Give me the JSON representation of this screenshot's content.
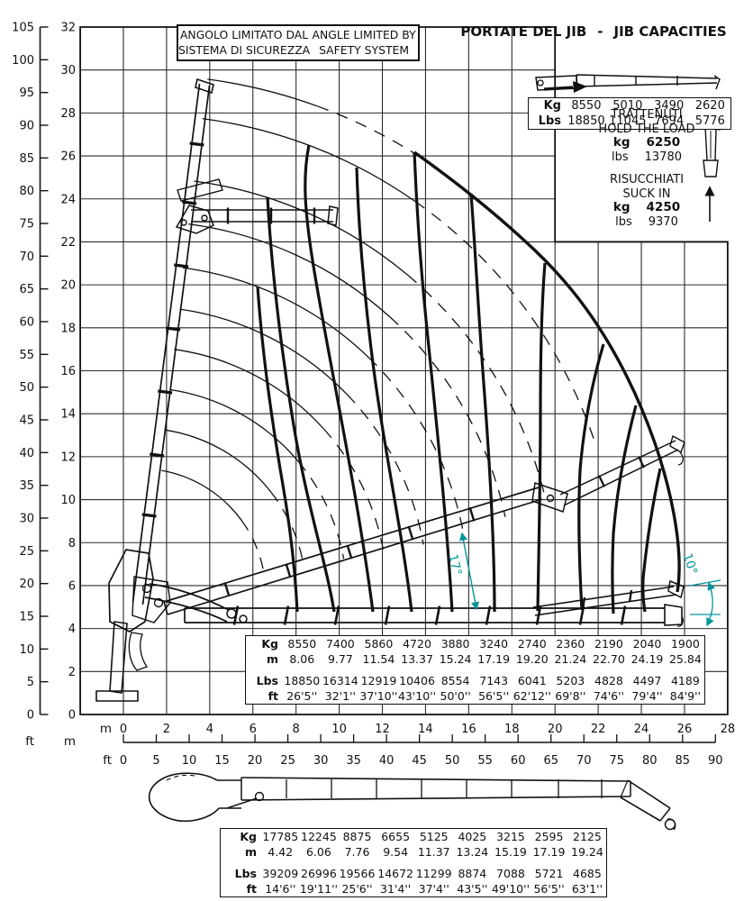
{
  "page": {
    "background": "#ffffff",
    "ink": "#111111",
    "accent_color": "#009699"
  },
  "title": {
    "it": "PORTATE DEL JIB",
    "separator": "-",
    "en": "JIB CAPACITIES"
  },
  "safety_note": {
    "it_line1": "ANGOLO LIMITATO DAL",
    "it_line2": "SISTEMA DI SICUREZZA",
    "en_line1": "ANGLE LIMITED BY",
    "en_line2": "SAFETY SYSTEM"
  },
  "jib_table": {
    "rows": [
      {
        "label": "Kg",
        "values": [
          "8550",
          "5010",
          "3490",
          "2620"
        ]
      },
      {
        "label": "Lbs",
        "values": [
          "18850",
          "11045",
          "7694",
          "5776"
        ]
      }
    ]
  },
  "hold_load": {
    "title_it": "TRATTENUTI",
    "title_en": "HOLD THE LOAD",
    "rows": [
      {
        "label": "kg",
        "value": "6250",
        "bold": true
      },
      {
        "label": "lbs",
        "value": "13780",
        "bold": false
      }
    ]
  },
  "suck_in": {
    "title_it": "RISUCCHIATI",
    "title_en": "SUCK IN",
    "rows": [
      {
        "label": "kg",
        "value": "4250",
        "bold": true
      },
      {
        "label": "lbs",
        "value": "9370",
        "bold": false
      }
    ]
  },
  "main_table": {
    "rows": [
      {
        "label": "Kg",
        "values": [
          "8550",
          "7400",
          "5860",
          "4720",
          "3880",
          "3240",
          "2740",
          "2360",
          "2190",
          "2040",
          "1900"
        ]
      },
      {
        "label": "m",
        "values": [
          "8.06",
          "9.77",
          "11.54",
          "13.37",
          "15.24",
          "17.19",
          "19.20",
          "21.24",
          "22.70",
          "24.19",
          "25.84"
        ]
      },
      {
        "label": "Lbs",
        "values": [
          "18850",
          "16314",
          "12919",
          "10406",
          "8554",
          "7143",
          "6041",
          "5203",
          "4828",
          "4497",
          "4189"
        ]
      },
      {
        "label": "ft",
        "values": [
          "26'5''",
          "32'1''",
          "37'10''",
          "43'10''",
          "50'0''",
          "56'5''",
          "62'12''",
          "69'8''",
          "74'6''",
          "79'4''",
          "84'9''"
        ]
      }
    ]
  },
  "boom_table": {
    "rows": [
      {
        "label": "Kg",
        "values": [
          "17785",
          "12245",
          "8875",
          "6655",
          "5125",
          "4025",
          "3215",
          "2595",
          "2125"
        ]
      },
      {
        "label": "m",
        "values": [
          "4.42",
          "6.06",
          "7.76",
          "9.54",
          "11.37",
          "13.24",
          "15.19",
          "17.19",
          "19.24"
        ]
      },
      {
        "label": "Lbs",
        "values": [
          "39209",
          "26996",
          "19566",
          "14672",
          "11299",
          "8874",
          "7088",
          "5721",
          "4685"
        ]
      },
      {
        "label": "ft",
        "values": [
          "14'6''",
          "19'11''",
          "25'6''",
          "31'4''",
          "37'4''",
          "43'5''",
          "49'10''",
          "56'5''",
          "63'1''"
        ]
      }
    ]
  },
  "axes": {
    "left_ft": {
      "unit": "ft",
      "ticks": [
        105,
        100,
        95,
        90,
        85,
        80,
        75,
        70,
        65,
        60,
        55,
        50,
        45,
        40,
        35,
        30,
        25,
        20,
        15,
        10,
        5,
        0
      ]
    },
    "left_m": {
      "unit": "m",
      "ticks": [
        32,
        30,
        28,
        26,
        24,
        22,
        20,
        18,
        16,
        14,
        12,
        10,
        8,
        6,
        4,
        2,
        0
      ]
    },
    "bottom_m": {
      "unit": "m",
      "ticks": [
        0,
        2,
        4,
        6,
        8,
        10,
        12,
        14,
        16,
        18,
        20,
        22,
        24,
        26,
        28
      ]
    },
    "bottom_ft": {
      "unit": "ft",
      "ticks": [
        0,
        5,
        10,
        15,
        20,
        25,
        30,
        35,
        40,
        45,
        50,
        55,
        60,
        65,
        70,
        75,
        80,
        85,
        90
      ]
    }
  },
  "annotations": {
    "boom_angle": "17°",
    "jib_angle": "10°"
  }
}
